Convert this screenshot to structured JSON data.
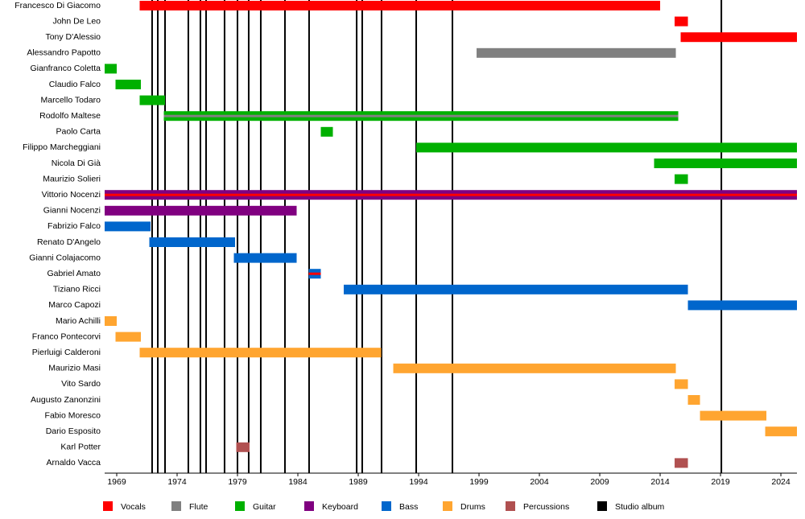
{
  "chart_data": {
    "type": "timeline",
    "xlim": [
      1968,
      2025.33
    ],
    "xticks": [
      1969,
      1974,
      1979,
      1984,
      1989,
      1994,
      1999,
      2004,
      2009,
      2014,
      2019,
      2024
    ],
    "roles": [
      {
        "name": "Vocals",
        "color": "#ff0000"
      },
      {
        "name": "Flute",
        "color": "#808080"
      },
      {
        "name": "Guitar",
        "color": "#00b000"
      },
      {
        "name": "Keyboard",
        "color": "#800080"
      },
      {
        "name": "Bass",
        "color": "#0066cc"
      },
      {
        "name": "Drums",
        "color": "#ffa530"
      },
      {
        "name": "Percussions",
        "color": "#b05050"
      },
      {
        "name": "Studio album",
        "color": "#000000"
      }
    ],
    "albums": [
      1971.93,
      1972.4,
      1973,
      1974.93,
      1975.93,
      1976.4,
      1977.93,
      1979,
      1979.93,
      1980.93,
      1982.93,
      1984.93,
      1988.87,
      1989.33,
      1990.93,
      1993.8,
      1996.8,
      2019.07
    ],
    "rows": [
      {
        "name": "Francesco Di Giacomo",
        "segments": [
          {
            "role": "Vocals",
            "start": 1970.9,
            "end": 2014
          }
        ]
      },
      {
        "name": "John De Leo",
        "segments": [
          {
            "role": "Vocals",
            "start": 2015.2,
            "end": 2016.3
          }
        ]
      },
      {
        "name": "Tony D'Alessio",
        "segments": [
          {
            "role": "Vocals",
            "start": 2015.7,
            "end": 2025.33
          }
        ]
      },
      {
        "name": "Alessandro Papotto",
        "segments": [
          {
            "role": "Flute",
            "start": 1998.8,
            "end": 2015.3
          }
        ]
      },
      {
        "name": "Gianfranco Coletta",
        "segments": [
          {
            "role": "Guitar",
            "start": 1968,
            "end": 1969
          }
        ]
      },
      {
        "name": "Claudio Falco",
        "segments": [
          {
            "role": "Guitar",
            "start": 1968.9,
            "end": 1971
          }
        ]
      },
      {
        "name": "Marcello Todaro",
        "segments": [
          {
            "role": "Guitar",
            "start": 1970.9,
            "end": 1973
          }
        ]
      },
      {
        "name": "Rodolfo Maltese",
        "segments": [
          {
            "role": "Guitar",
            "start": 1972.9,
            "end": 2015.5
          },
          {
            "role": "Flute",
            "start": 1972.9,
            "end": 2015.5
          }
        ]
      },
      {
        "name": "Paolo Carta",
        "segments": [
          {
            "role": "Guitar",
            "start": 1985.9,
            "end": 1986.9
          }
        ]
      },
      {
        "name": "Filippo Marcheggiani",
        "segments": [
          {
            "role": "Guitar",
            "start": 1993.8,
            "end": 2025.33
          }
        ]
      },
      {
        "name": "Nicola Di Già",
        "segments": [
          {
            "role": "Guitar",
            "start": 2013.5,
            "end": 2025.33
          }
        ]
      },
      {
        "name": "Maurizio Solieri",
        "segments": [
          {
            "role": "Guitar",
            "start": 2015.2,
            "end": 2016.3
          }
        ]
      },
      {
        "name": "Vittorio Nocenzi",
        "segments": [
          {
            "role": "Keyboard",
            "start": 1968,
            "end": 2025.33
          },
          {
            "role": "Vocals",
            "start": 1968,
            "end": 2025.33
          }
        ]
      },
      {
        "name": "Gianni Nocenzi",
        "segments": [
          {
            "role": "Keyboard",
            "start": 1968,
            "end": 1983.9
          }
        ]
      },
      {
        "name": "Fabrizio Falco",
        "segments": [
          {
            "role": "Bass",
            "start": 1968,
            "end": 1971.8
          }
        ]
      },
      {
        "name": "Renato D'Angelo",
        "segments": [
          {
            "role": "Bass",
            "start": 1971.7,
            "end": 1978.8
          }
        ]
      },
      {
        "name": "Gianni Colajacomo",
        "segments": [
          {
            "role": "Bass",
            "start": 1978.7,
            "end": 1983.9
          }
        ]
      },
      {
        "name": "Gabriel Amato",
        "segments": [
          {
            "role": "Bass",
            "start": 1984.9,
            "end": 1985.9
          },
          {
            "role": "Vocals",
            "start": 1984.9,
            "end": 1985.9
          }
        ]
      },
      {
        "name": "Tiziano Ricci",
        "segments": [
          {
            "role": "Bass",
            "start": 1987.8,
            "end": 2016.3
          }
        ]
      },
      {
        "name": "Marco Capozi",
        "segments": [
          {
            "role": "Bass",
            "start": 2016.3,
            "end": 2025.33
          }
        ]
      },
      {
        "name": "Mario Achilli",
        "segments": [
          {
            "role": "Drums",
            "start": 1968,
            "end": 1969
          }
        ]
      },
      {
        "name": "Franco Pontecorvi",
        "segments": [
          {
            "role": "Drums",
            "start": 1968.9,
            "end": 1971
          }
        ]
      },
      {
        "name": "Pierluigi Calderoni",
        "segments": [
          {
            "role": "Drums",
            "start": 1970.9,
            "end": 1990.9
          }
        ]
      },
      {
        "name": "Maurizio Masi",
        "segments": [
          {
            "role": "Drums",
            "start": 1991.9,
            "end": 2015.3
          }
        ]
      },
      {
        "name": "Vito Sardo",
        "segments": [
          {
            "role": "Drums",
            "start": 2015.2,
            "end": 2016.3
          }
        ]
      },
      {
        "name": "Augusto Zanonzini",
        "segments": [
          {
            "role": "Drums",
            "start": 2016.3,
            "end": 2017.3
          }
        ]
      },
      {
        "name": "Fabio Moresco",
        "segments": [
          {
            "role": "Drums",
            "start": 2017.3,
            "end": 2022.8
          }
        ]
      },
      {
        "name": "Dario Esposito",
        "segments": [
          {
            "role": "Drums",
            "start": 2022.7,
            "end": 2025.33
          }
        ]
      },
      {
        "name": "Karl Potter",
        "segments": [
          {
            "role": "Percussions",
            "start": 1978.9,
            "end": 1980
          }
        ]
      },
      {
        "name": "Arnaldo Vacca",
        "segments": [
          {
            "role": "Percussions",
            "start": 2015.2,
            "end": 2016.3
          }
        ]
      }
    ]
  }
}
